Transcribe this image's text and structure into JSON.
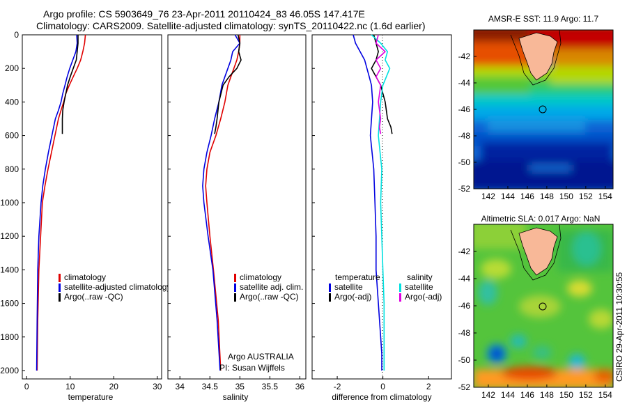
{
  "header": {
    "title_line1": "Argo profile: CS 5903649_76 23-Apr-2011 20110424_83 46.05S 147.417E",
    "title_line2": "Climatology: CARS2009. Satellite-adjusted climatology: synTS_20110422.nc (1.6d earlier)"
  },
  "footer": {
    "institution": "Argo AUSTRALIA",
    "pi": "PI: Susan Wijffels",
    "stamp": "CSIRO 29-Apr-2011 10:30:55"
  },
  "colors": {
    "climatology": "#e00000",
    "satellite": "#0000e0",
    "argo": "#000000",
    "salinity_sat": "#00e0e0",
    "salinity_argo": "#e000e0"
  },
  "chart_data": [
    {
      "id": "temperature",
      "type": "line",
      "xlabel": "temperature",
      "xlim": [
        -1,
        31
      ],
      "ylim": [
        0,
        2050
      ],
      "y_reversed": true,
      "xticks": [
        0,
        10,
        20,
        30
      ],
      "yticks": [
        0,
        200,
        400,
        600,
        800,
        1000,
        1200,
        1400,
        1600,
        1800,
        2000
      ],
      "legend": [
        "climatology",
        "satellite-adjusted climatology",
        "Argo(..raw -QC)"
      ],
      "series": [
        {
          "name": "climatology",
          "color": "#e00000",
          "x": [
            13.5,
            13.3,
            12.9,
            12.4,
            11.6,
            10.7,
            9.8,
            9.0,
            8.5,
            7.9,
            7.3,
            6.5,
            5.7,
            4.9,
            4.2,
            3.6,
            3.2,
            2.8,
            2.55,
            2.4
          ],
          "y": [
            0,
            50,
            100,
            150,
            200,
            250,
            300,
            350,
            400,
            450,
            500,
            600,
            700,
            800,
            900,
            1000,
            1200,
            1400,
            1700,
            2000
          ]
        },
        {
          "name": "satellite-adjusted climatology",
          "color": "#0000e0",
          "x": [
            11.5,
            11.6,
            11.3,
            10.6,
            9.9,
            9.3,
            8.8,
            8.3,
            7.9,
            7.3,
            6.6,
            5.8,
            5.0,
            4.3,
            3.7,
            3.3,
            2.8,
            2.55,
            2.4,
            2.3
          ],
          "y": [
            0,
            50,
            100,
            150,
            200,
            250,
            300,
            350,
            400,
            450,
            500,
            600,
            700,
            800,
            900,
            1000,
            1200,
            1400,
            1700,
            2000
          ]
        },
        {
          "name": "Argo(..raw -QC)",
          "color": "#000000",
          "x": [
            11.8,
            11.8,
            11.6,
            11.4,
            10.7,
            10.0,
            9.4,
            9.0,
            8.6,
            8.3,
            8.2,
            8.2
          ],
          "y": [
            0,
            50,
            100,
            150,
            200,
            250,
            300,
            350,
            400,
            450,
            500,
            590
          ]
        }
      ]
    },
    {
      "id": "salinity",
      "type": "line",
      "xlabel": "salinity",
      "xlim": [
        33.8,
        36.1
      ],
      "ylim": [
        0,
        2050
      ],
      "y_reversed": true,
      "xticks": [
        34,
        34.5,
        35,
        35.5,
        36
      ],
      "yticks": [
        0,
        200,
        400,
        600,
        800,
        1000,
        1200,
        1400,
        1600,
        1800,
        2000
      ],
      "legend": [
        "climatology",
        "satellite adj. clim.",
        "Argo(..raw -QC)"
      ],
      "series": [
        {
          "name": "climatology",
          "color": "#e00000",
          "x": [
            35.0,
            35.0,
            34.98,
            34.95,
            34.9,
            34.85,
            34.8,
            34.75,
            34.68,
            34.6,
            34.5,
            34.45,
            34.43,
            34.45,
            34.5,
            34.56,
            34.64,
            34.68
          ],
          "y": [
            0,
            50,
            100,
            150,
            200,
            250,
            300,
            400,
            500,
            600,
            700,
            800,
            900,
            1000,
            1200,
            1400,
            1700,
            2000
          ]
        },
        {
          "name": "satellite adj. clim.",
          "color": "#0000e0",
          "x": [
            34.92,
            35.0,
            34.88,
            34.85,
            34.8,
            34.75,
            34.7,
            34.65,
            34.58,
            34.52,
            34.45,
            34.4,
            34.38,
            34.4,
            34.47,
            34.55,
            34.62,
            34.67
          ],
          "y": [
            0,
            50,
            100,
            150,
            200,
            250,
            300,
            400,
            500,
            600,
            700,
            800,
            900,
            1000,
            1200,
            1400,
            1700,
            2000
          ]
        },
        {
          "name": "Argo(..raw -QC)",
          "color": "#000000",
          "x": [
            34.97,
            35.0,
            34.98,
            35.02,
            34.95,
            34.82,
            34.72,
            34.65,
            34.62,
            34.6,
            34.58
          ],
          "y": [
            0,
            50,
            100,
            150,
            200,
            250,
            300,
            400,
            500,
            550,
            590
          ]
        }
      ]
    },
    {
      "id": "difference",
      "type": "line",
      "xlabel": "difference from climatology",
      "xlim": [
        -3.1,
        3.0
      ],
      "ylim": [
        0,
        2050
      ],
      "y_reversed": true,
      "xticks": [
        -2,
        0,
        2
      ],
      "yticks": [
        0,
        200,
        400,
        600,
        800,
        1000,
        1200,
        1400,
        1600,
        1800,
        2000
      ],
      "legend_temperature_heading": "temperature",
      "legend_salinity_heading": "salinity",
      "legend": [
        "satellite",
        "Argo(-adj)",
        "satellite",
        "Argo(-adj)"
      ],
      "series": [
        {
          "name": "satellite",
          "group": "temperature",
          "color": "#0000e0",
          "x": [
            -1.3,
            -1.2,
            -1.0,
            -0.8,
            -0.7,
            -0.6,
            -0.5,
            -0.45,
            -0.55,
            -0.4,
            -0.35,
            -0.3,
            -0.3,
            -0.2,
            -0.1,
            -0.05,
            -0.05
          ],
          "y": [
            0,
            50,
            100,
            150,
            200,
            250,
            300,
            400,
            600,
            800,
            1000,
            1200,
            1400,
            1600,
            1800,
            1900,
            2000
          ]
        },
        {
          "name": "Argo(-adj)",
          "group": "temperature",
          "color": "#000000",
          "x": [
            -0.4,
            -0.3,
            -0.2,
            -0.3,
            -0.5,
            -0.3,
            -0.1,
            0.1,
            0.2,
            0.35,
            0.4
          ],
          "y": [
            0,
            50,
            100,
            150,
            200,
            250,
            300,
            400,
            500,
            550,
            590
          ]
        },
        {
          "name": "satellite",
          "group": "salinity",
          "color": "#00e0e0",
          "x": [
            -0.5,
            -0.1,
            0.2,
            0.1,
            0.3,
            0.15,
            0.0,
            -0.1,
            -0.2,
            -0.05,
            -0.1,
            -0.05,
            0.0,
            0.05,
            0.05,
            0.05
          ],
          "y": [
            0,
            50,
            100,
            150,
            200,
            250,
            300,
            400,
            600,
            800,
            1000,
            1200,
            1400,
            1600,
            1800,
            2000
          ]
        },
        {
          "name": "Argo(-adj)",
          "group": "salinity",
          "color": "#e000e0",
          "x": [
            -0.2,
            -0.3,
            0.1,
            -0.3,
            -0.1,
            -0.3,
            -0.1,
            -0.2,
            -0.1,
            -0.15,
            -0.1
          ],
          "y": [
            0,
            50,
            100,
            150,
            200,
            250,
            300,
            400,
            500,
            550,
            590
          ]
        }
      ]
    },
    {
      "id": "sst_map",
      "type": "heatmap",
      "title": "AMSR-E SST: 11.9 Argo: 11.7",
      "xlim": [
        140.5,
        154.8
      ],
      "ylim": [
        -52,
        -40
      ],
      "xticks": [
        142,
        144,
        146,
        148,
        150,
        152,
        154
      ],
      "yticks": [
        -52,
        -50,
        -48,
        -46,
        -44,
        -42
      ],
      "marker": {
        "lon": 147.417,
        "lat": -46.05
      }
    },
    {
      "id": "sla_map",
      "type": "heatmap",
      "title": "Altimetric SLA: 0.017 Argo: NaN",
      "xlim": [
        140.5,
        154.8
      ],
      "ylim": [
        -52,
        -40
      ],
      "xticks": [
        142,
        144,
        146,
        148,
        150,
        152,
        154
      ],
      "yticks": [
        -52,
        -50,
        -48,
        -46,
        -44,
        -42
      ],
      "marker": {
        "lon": 147.417,
        "lat": -46.05
      }
    }
  ]
}
